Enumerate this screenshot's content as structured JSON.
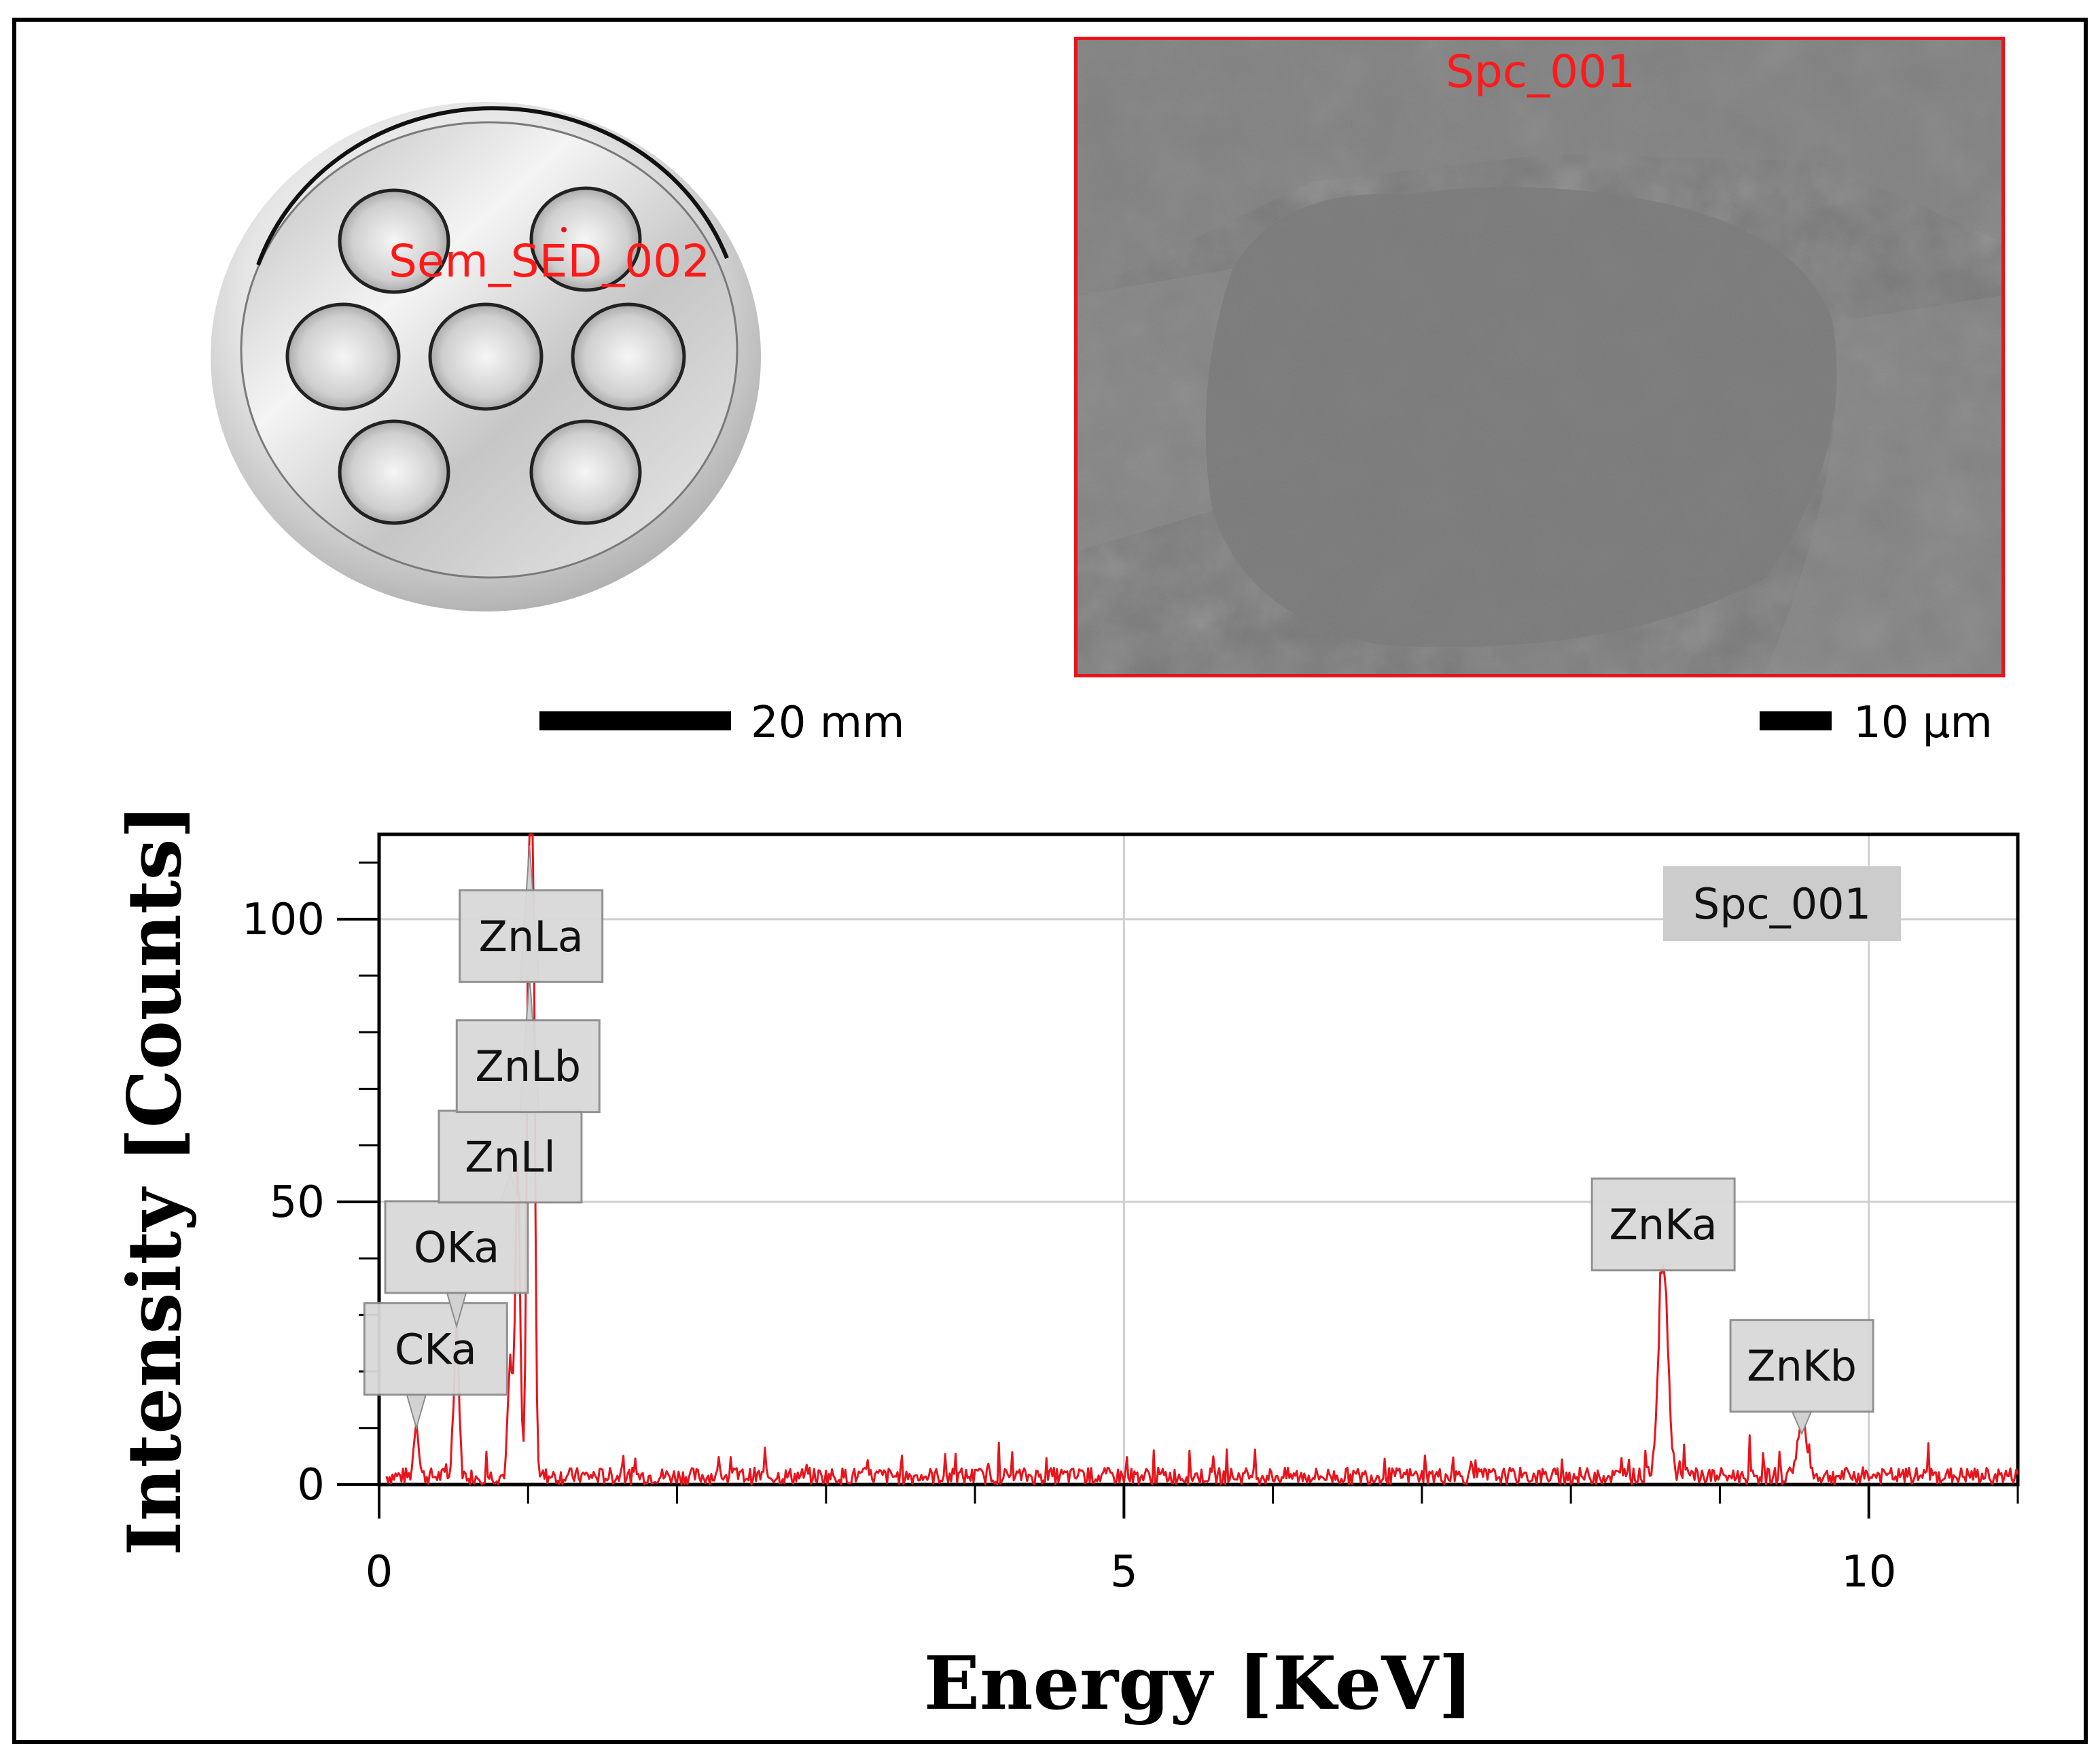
{
  "figure": {
    "holder_label": "Sem_SED_002",
    "sem_label": "Spc_001",
    "scale_left": "20 mm",
    "scale_right": "10 µm"
  },
  "chart_data": {
    "type": "line",
    "xlabel": "Energy [KeV]",
    "ylabel": "Intensity [Counts]",
    "xlim": [
      0,
      11
    ],
    "ylim": [
      0,
      115
    ],
    "x_ticks": [
      0,
      5,
      10
    ],
    "y_ticks": [
      0,
      50,
      100
    ],
    "grid": true,
    "legend": {
      "entry": "Spc_001",
      "placement": "top-right"
    },
    "series": [
      {
        "name": "Spc_001",
        "color": "#e8141c",
        "peaks": [
          {
            "x": 0.25,
            "y": 10
          },
          {
            "x": 0.52,
            "y": 28
          },
          {
            "x": 0.88,
            "y": 20
          },
          {
            "x": 0.93,
            "y": 55
          },
          {
            "x": 1.01,
            "y": 113
          },
          {
            "x": 1.03,
            "y": 90
          },
          {
            "x": 8.62,
            "y": 38
          },
          {
            "x": 9.55,
            "y": 9
          }
        ],
        "baseline": 1.5
      }
    ],
    "annotations": [
      {
        "label": "CKa",
        "x": 0.25,
        "y": 10,
        "box_x": 0.38,
        "box_y": 24
      },
      {
        "label": "OKa",
        "x": 0.52,
        "y": 28,
        "box_x": 0.52,
        "box_y": 42
      },
      {
        "label": "ZnLl",
        "x": 0.88,
        "y": 55,
        "box_x": 0.88,
        "box_y": 58
      },
      {
        "label": "ZnLb",
        "x": 1.01,
        "y": 90,
        "box_x": 1.0,
        "box_y": 74
      },
      {
        "label": "ZnLa",
        "x": 1.01,
        "y": 113,
        "box_x": 1.02,
        "box_y": 97
      },
      {
        "label": "ZnKa",
        "x": 8.62,
        "y": 38,
        "box_x": 8.62,
        "box_y": 46
      },
      {
        "label": "ZnKb",
        "x": 9.55,
        "y": 9,
        "box_x": 9.55,
        "box_y": 21
      }
    ]
  }
}
